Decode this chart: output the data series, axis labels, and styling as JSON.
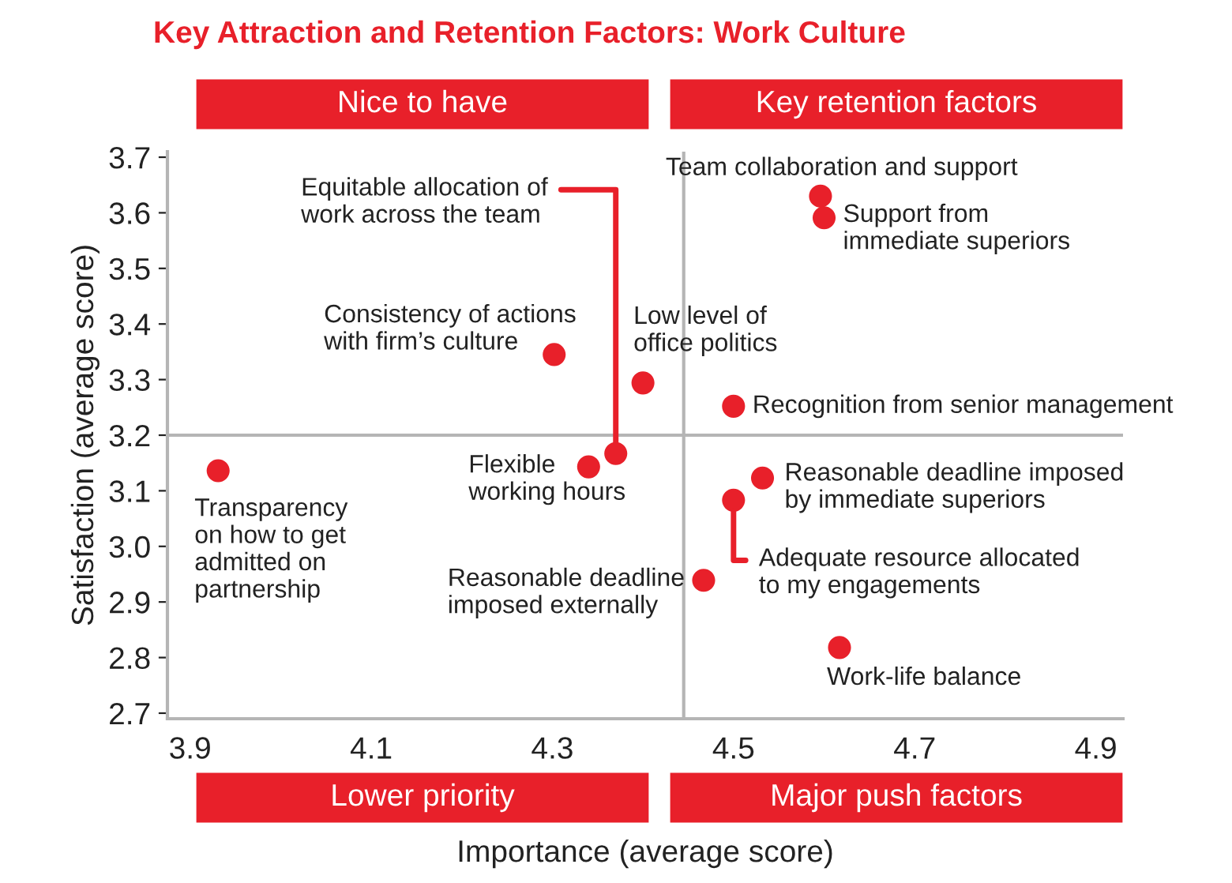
{
  "chart_data": {
    "type": "scatter",
    "title": "Key Attraction and Retention Factors: Work Culture",
    "xlabel": "Importance (average score)",
    "ylabel": "Satisfaction (average score)",
    "x": [
      4.596,
      4.6,
      4.302,
      4.4,
      4.5,
      4.37,
      4.34,
      3.931,
      4.532,
      4.5,
      4.467,
      4.617
    ],
    "values": [
      3.63,
      3.591,
      3.345,
      3.294,
      3.252,
      3.167,
      3.143,
      3.136,
      3.123,
      3.083,
      2.939,
      2.818
    ],
    "color": "#e8202a",
    "marker": "circle",
    "xlim": [
      3.875,
      4.93
    ],
    "xticks": [
      3.9,
      4.1,
      4.3,
      4.5,
      4.7,
      4.9
    ],
    "ylim": [
      2.69,
      3.71
    ],
    "yticks": [
      {
        "value": 2.7,
        "label": "2.7"
      },
      2.8,
      2.9,
      {
        "value": 3.0,
        "label": "3.0"
      },
      3.1,
      3.2,
      3.3,
      3.4,
      3.5,
      3.6,
      3.7
    ],
    "grid": false,
    "legend": false,
    "ref_lines": [
      {
        "axis": "x",
        "value": 4.445,
        "color": "#b5b5b5"
      },
      {
        "axis": "y",
        "value": 3.2,
        "color": "#b5b5b5"
      }
    ],
    "annotations": [
      "Nice to have",
      "Key retention factors",
      "Lower priority",
      "Major push factors",
      {
        "text": "Team collaboration and support",
        "x": 4.596,
        "y": 3.63
      },
      {
        "text": "Support from\nimmediate superiors",
        "x": 4.6,
        "y": 3.591
      },
      {
        "text": "Consistency of actions\nwith firm’s culture",
        "x": 4.302,
        "y": 3.345
      },
      {
        "text": "Low level of\noffice politics",
        "x": 4.4,
        "y": 3.294
      },
      {
        "text": "Recognition from senior management",
        "x": 4.5,
        "y": 3.252
      },
      {
        "text": "Equitable allocation of\nwork across the team",
        "x": 4.37,
        "y": 3.167
      },
      {
        "text": "Flexible\nworking hours",
        "x": 4.34,
        "y": 3.143
      },
      {
        "text": "Transparency\non how to get\nadmitted on\npartnership",
        "x": 3.931,
        "y": 3.136
      },
      {
        "text": "Reasonable deadline imposed\nby immediate superiors",
        "x": 4.532,
        "y": 3.123
      },
      {
        "text": "Adequate resource allocated\nto my engagements",
        "x": 4.5,
        "y": 3.083
      },
      {
        "text": "Reasonable deadline\nimposed externally",
        "x": 4.467,
        "y": 2.939
      },
      {
        "text": "Work-life balance",
        "x": 4.617,
        "y": 2.818
      }
    ]
  }
}
